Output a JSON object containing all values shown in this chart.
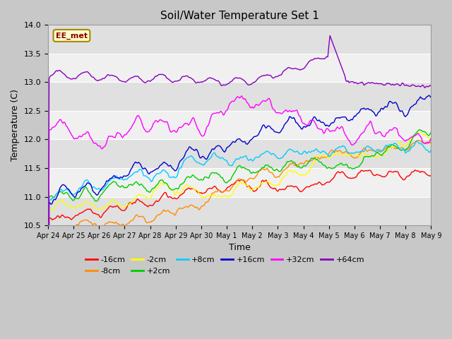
{
  "title": "Soil/Water Temperature Set 1",
  "xlabel": "Time",
  "ylabel": "Temperature (C)",
  "ylim": [
    10.5,
    14.0
  ],
  "xlim": [
    0,
    360
  ],
  "x_tick_labels": [
    "Apr 24",
    "Apr 25",
    "Apr 26",
    "Apr 27",
    "Apr 28",
    "Apr 29",
    "Apr 30",
    "May 1",
    "May 2",
    "May 3",
    "May 4",
    "May 5",
    "May 6",
    "May 7",
    "May 8",
    "May 9"
  ],
  "x_tick_positions": [
    0,
    24,
    48,
    72,
    96,
    120,
    144,
    168,
    192,
    216,
    240,
    264,
    288,
    312,
    336,
    360
  ],
  "y_ticks": [
    10.5,
    11.0,
    11.5,
    12.0,
    12.5,
    13.0,
    13.5,
    14.0
  ],
  "series_labels": [
    "-16cm",
    "-8cm",
    "-2cm",
    "+2cm",
    "+8cm",
    "+16cm",
    "+32cm",
    "+64cm"
  ],
  "series_colors": [
    "#ff0000",
    "#ff8c00",
    "#ffff00",
    "#00cc00",
    "#00ccff",
    "#0000cc",
    "#ff00ff",
    "#8800bb"
  ],
  "bg_color": "#ffffff",
  "plot_bg_color": "#e8e8e8",
  "band_colors": [
    "#e0e0e0",
    "#f0f0f0"
  ],
  "annotation_text": "EE_met",
  "annotation_bg": "#ffffcc",
  "annotation_border": "#aa8800",
  "grid_color": "#ffffff"
}
